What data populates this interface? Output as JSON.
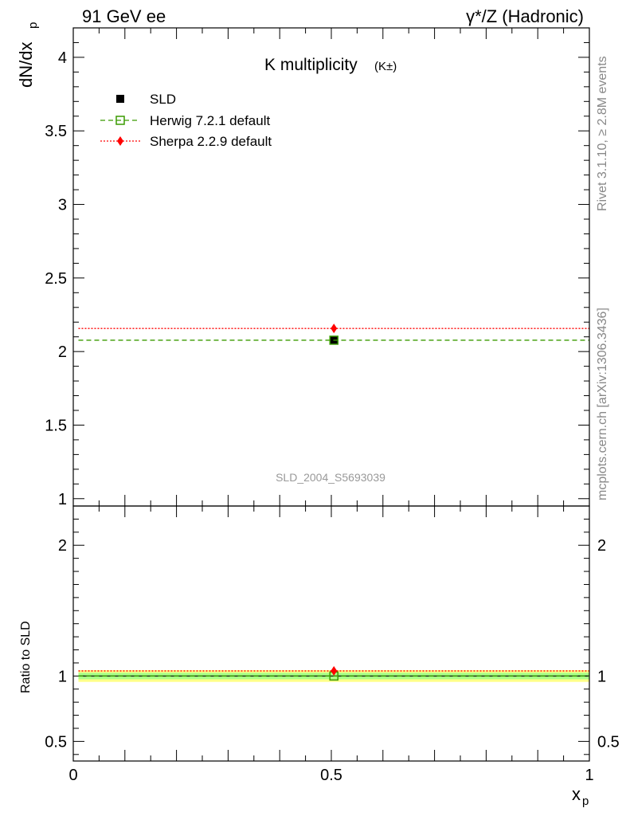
{
  "header": {
    "left": "91 GeV ee",
    "right": "γ*/Z (Hadronic)"
  },
  "side_text": {
    "upper": "Rivet 3.1.10, ≥ 2.8M events",
    "lower": "mcplots.cern.ch [arXiv:1306.3436]"
  },
  "chart_data": [
    {
      "type": "scatter",
      "panel": "main",
      "title": "K multiplicity",
      "title_sub": "(K±)",
      "ylabel": "dN/dx",
      "ylabel_sub": "p",
      "watermark": "SLD_2004_S5693039",
      "xlim": [
        0,
        1
      ],
      "ylim": [
        0.95,
        4.2
      ],
      "yticks": [
        1,
        1.5,
        2,
        2.5,
        3,
        3.5,
        4
      ],
      "ytick_labels": [
        "1",
        "1.5",
        "2",
        "2.5",
        "3",
        "3.5",
        "4"
      ],
      "grid": false,
      "legend_position": "top-left",
      "series": [
        {
          "name": "SLD",
          "x": [
            0.505
          ],
          "y": [
            2.077
          ],
          "color": "#000000",
          "marker": "filled-square"
        },
        {
          "name": "Herwig 7.2.1 default",
          "x": [
            0.505
          ],
          "y": [
            2.077
          ],
          "color": "#3a9a00",
          "marker": "open-square",
          "line": "dashed",
          "range": [
            0.01,
            1.0
          ]
        },
        {
          "name": "Sherpa 2.2.9 default",
          "x": [
            0.505
          ],
          "y": [
            2.157
          ],
          "color": "#ff0000",
          "marker": "diamond",
          "line": "dotted",
          "range": [
            0.01,
            1.0
          ]
        }
      ]
    },
    {
      "type": "scatter",
      "panel": "ratio",
      "ylabel": "Ratio to SLD",
      "xlabel": "x",
      "xlabel_sub": "p",
      "xlim": [
        0,
        1
      ],
      "ylim": [
        0.35,
        2.3
      ],
      "xticks": [
        0,
        0.5,
        1
      ],
      "xtick_labels": [
        "0",
        "0.5",
        "1"
      ],
      "yticks": [
        0.5,
        1,
        2
      ],
      "ytick_labels": [
        "0.5",
        "1",
        "2"
      ],
      "band": {
        "range": [
          0.01,
          1.0
        ],
        "inner": [
          0.975,
          1.025
        ],
        "outer": [
          0.955,
          1.045
        ],
        "inner_color": "#a9ff88",
        "outer_color": "#ffff88"
      },
      "series": [
        {
          "name": "SLD",
          "x": [
            0.505
          ],
          "y": [
            1.0
          ],
          "color": "#000000"
        },
        {
          "name": "Herwig 7.2.1 default",
          "x": [
            0.505
          ],
          "y": [
            1.0
          ],
          "color": "#3a9a00",
          "marker": "open-square",
          "line": "dashed",
          "range": [
            0.01,
            1.0
          ]
        },
        {
          "name": "Sherpa 2.2.9 default",
          "x": [
            0.505
          ],
          "y": [
            1.039
          ],
          "color": "#ff0000",
          "marker": "diamond",
          "line": "dotted",
          "range": [
            0.01,
            1.0
          ]
        }
      ]
    }
  ]
}
